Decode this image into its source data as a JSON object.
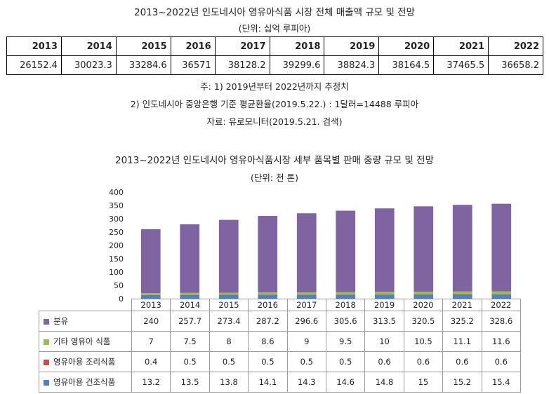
{
  "top": {
    "title": "2013~2022년 인도네시아 영유아식품 시장 전체 매출액 규모 및 전망",
    "unit": "(단위: 십억 루피아)",
    "years": [
      "2013",
      "2014",
      "2015",
      "2016",
      "2017",
      "2018",
      "2019",
      "2020",
      "2021",
      "2022"
    ],
    "values": [
      "26152.4",
      "30023.3",
      "33284.6",
      "36571",
      "38128.2",
      "39299.6",
      "38824.3",
      "38164.5",
      "37465.5",
      "36658.2"
    ]
  },
  "notes": {
    "note1": "주: 1) 2019년부터 2022년까지 추정치",
    "note2": "2) 인도네시아 중앙은행 기준 평균환율(2019.5.22.) : 1달러=14488 루피아",
    "source": "자료: 유로모니터(2019.5.21. 검색)"
  },
  "chart_title": "2013~2022년 인도네시아 영유아식품시장 세부 품목별 판매 중량 규모 및 전망",
  "chart_unit": "(단위: 천 톤)",
  "chart_data": {
    "type": "bar",
    "stacked": true,
    "categories": [
      "2013",
      "2014",
      "2015",
      "2016",
      "2017",
      "2018",
      "2019",
      "2020",
      "2021",
      "2022"
    ],
    "ylim": [
      0,
      400
    ],
    "yticks": [
      "0",
      "50",
      "100",
      "150",
      "200",
      "250",
      "300",
      "350",
      "400"
    ],
    "grid": false,
    "legend": "data-table",
    "series": [
      {
        "name": "분유",
        "color": "#8064a2",
        "values": [
          240,
          257.7,
          273.4,
          287.2,
          296.6,
          305.6,
          313.5,
          320.5,
          325.2,
          328.6
        ]
      },
      {
        "name": "기타 영유아 식품",
        "color": "#9bbb59",
        "values": [
          7,
          7.5,
          8,
          8.6,
          9,
          9.5,
          10,
          10.5,
          11.1,
          11.6
        ]
      },
      {
        "name": "영유아용 조리식품",
        "color": "#c0504d",
        "values": [
          0.4,
          0.5,
          0.5,
          0.5,
          0.5,
          0.5,
          0.6,
          0.6,
          0.6,
          0.6
        ]
      },
      {
        "name": "영유아용 건조식품",
        "color": "#4f81bd",
        "values": [
          13.2,
          13.5,
          13.8,
          14.1,
          14.3,
          14.6,
          14.8,
          15,
          15.2,
          15.4
        ]
      }
    ],
    "stack_order": [
      "영유아용 건조식품",
      "영유아용 조리식품",
      "기타 영유아 식품",
      "분유"
    ]
  }
}
